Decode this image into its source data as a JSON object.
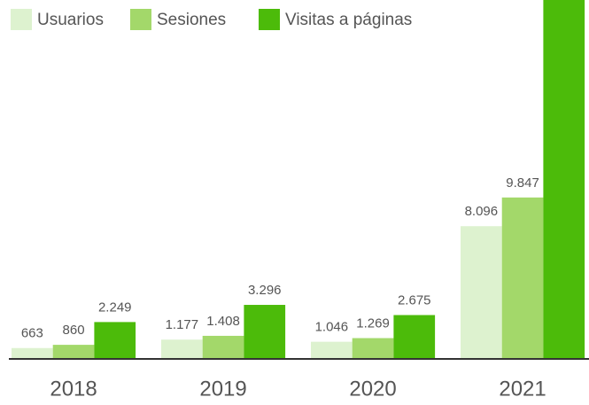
{
  "chart_data": {
    "type": "bar",
    "categories": [
      "2018",
      "2019",
      "2020",
      "2021"
    ],
    "series": [
      {
        "name": "Usuarios",
        "color": "#ddf2cf",
        "values": [
          663,
          1177,
          1046,
          8096
        ],
        "value_labels": [
          "663",
          "1.177",
          "1.046",
          "8.096"
        ]
      },
      {
        "name": "Sesiones",
        "color": "#a3d86a",
        "values": [
          860,
          1408,
          1269,
          9847
        ],
        "value_labels": [
          "860",
          "1.408",
          "1.269",
          "9.847"
        ]
      },
      {
        "name": "Visitas a páginas",
        "color": "#4cbb0a",
        "values": [
          2249,
          3296,
          2675,
          26000
        ],
        "value_labels": [
          "2.249",
          "3.296",
          "2.675",
          null
        ]
      }
    ],
    "legend": "top-left"
  }
}
